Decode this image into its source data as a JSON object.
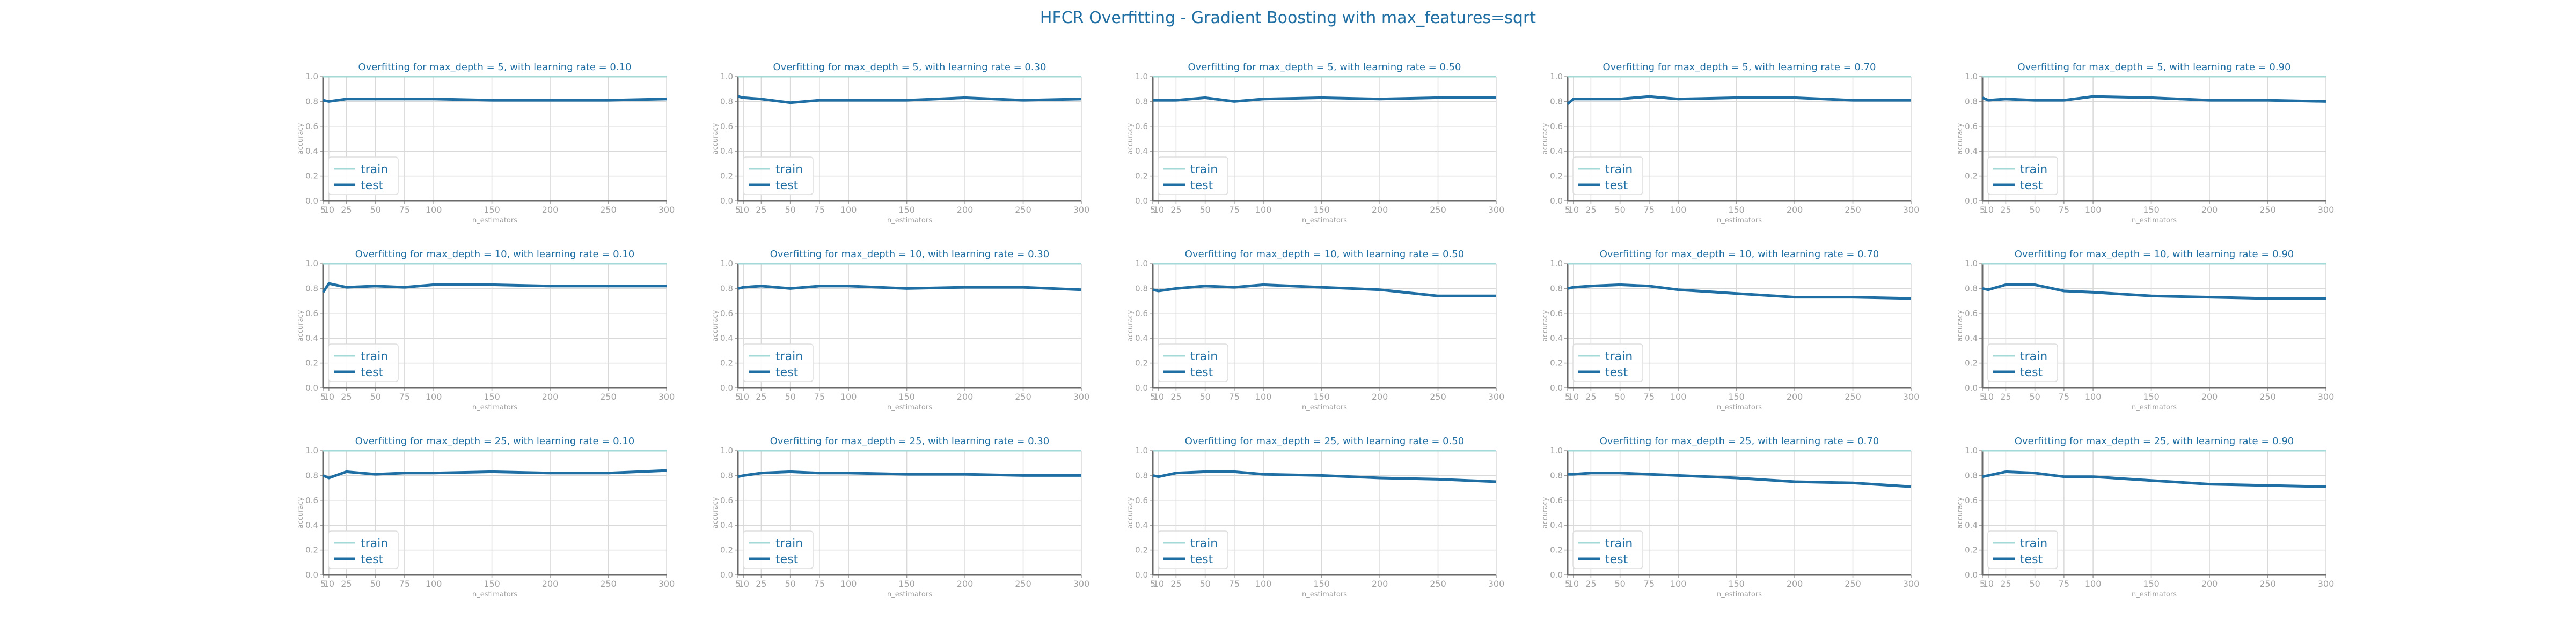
{
  "figure": {
    "suptitle": "HFCR Overfitting - Gradient Boosting with max_features=sqrt",
    "colors": {
      "train": "#a3d9d6",
      "test": "#1f6fa4",
      "title": "#1f6fa4",
      "axis": "#a0a0a0",
      "grid": "#d9d9d9",
      "frame": "#6a6a6a"
    }
  },
  "chart_data": [
    {
      "type": "line",
      "title": "Overfitting for max_depth = 5, with learning rate = 0.10",
      "xlabel": "n_estimators",
      "ylabel": "accuracy",
      "x": [
        5,
        10,
        25,
        50,
        75,
        100,
        150,
        200,
        250,
        300
      ],
      "xticks": [
        "5",
        "10",
        "25",
        "50",
        "75",
        "100",
        "150",
        "200",
        "250",
        "300"
      ],
      "ylim": [
        0,
        1
      ],
      "yticks": [
        "0.0",
        "0.2",
        "0.4",
        "0.6",
        "0.8",
        "1.0"
      ],
      "grid": true,
      "legend": "lower-left",
      "series": [
        {
          "name": "train",
          "values": [
            1,
            1,
            1,
            1,
            1,
            1,
            1,
            1,
            1,
            1
          ]
        },
        {
          "name": "test",
          "values": [
            0.81,
            0.8,
            0.82,
            0.82,
            0.82,
            0.82,
            0.81,
            0.81,
            0.81,
            0.82
          ]
        }
      ]
    },
    {
      "type": "line",
      "title": "Overfitting for max_depth = 5, with learning rate = 0.30",
      "xlabel": "n_estimators",
      "ylabel": "accuracy",
      "x": [
        5,
        10,
        25,
        50,
        75,
        100,
        150,
        200,
        250,
        300
      ],
      "xticks": [
        "5",
        "10",
        "25",
        "50",
        "75",
        "100",
        "150",
        "200",
        "250",
        "300"
      ],
      "ylim": [
        0,
        1
      ],
      "yticks": [
        "0.0",
        "0.2",
        "0.4",
        "0.6",
        "0.8",
        "1.0"
      ],
      "grid": true,
      "legend": "lower-left",
      "series": [
        {
          "name": "train",
          "values": [
            1,
            1,
            1,
            1,
            1,
            1,
            1,
            1,
            1,
            1
          ]
        },
        {
          "name": "test",
          "values": [
            0.84,
            0.83,
            0.82,
            0.79,
            0.81,
            0.81,
            0.81,
            0.83,
            0.81,
            0.82
          ]
        }
      ]
    },
    {
      "type": "line",
      "title": "Overfitting for max_depth = 5, with learning rate = 0.50",
      "xlabel": "n_estimators",
      "ylabel": "accuracy",
      "x": [
        5,
        10,
        25,
        50,
        75,
        100,
        150,
        200,
        250,
        300
      ],
      "xticks": [
        "5",
        "10",
        "25",
        "50",
        "75",
        "100",
        "150",
        "200",
        "250",
        "300"
      ],
      "ylim": [
        0,
        1
      ],
      "yticks": [
        "0.0",
        "0.2",
        "0.4",
        "0.6",
        "0.8",
        "1.0"
      ],
      "grid": true,
      "legend": "lower-left",
      "series": [
        {
          "name": "train",
          "values": [
            1,
            1,
            1,
            1,
            1,
            1,
            1,
            1,
            1,
            1
          ]
        },
        {
          "name": "test",
          "values": [
            0.81,
            0.81,
            0.81,
            0.83,
            0.8,
            0.82,
            0.83,
            0.82,
            0.83,
            0.83
          ]
        }
      ]
    },
    {
      "type": "line",
      "title": "Overfitting for max_depth = 5, with learning rate = 0.70",
      "xlabel": "n_estimators",
      "ylabel": "accuracy",
      "x": [
        5,
        10,
        25,
        50,
        75,
        100,
        150,
        200,
        250,
        300
      ],
      "xticks": [
        "5",
        "10",
        "25",
        "50",
        "75",
        "100",
        "150",
        "200",
        "250",
        "300"
      ],
      "ylim": [
        0,
        1
      ],
      "yticks": [
        "0.0",
        "0.2",
        "0.4",
        "0.6",
        "0.8",
        "1.0"
      ],
      "grid": true,
      "legend": "lower-left",
      "series": [
        {
          "name": "train",
          "values": [
            1,
            1,
            1,
            1,
            1,
            1,
            1,
            1,
            1,
            1
          ]
        },
        {
          "name": "test",
          "values": [
            0.78,
            0.82,
            0.82,
            0.82,
            0.84,
            0.82,
            0.83,
            0.83,
            0.81,
            0.81
          ]
        }
      ]
    },
    {
      "type": "line",
      "title": "Overfitting for max_depth = 5, with learning rate = 0.90",
      "xlabel": "n_estimators",
      "ylabel": "accuracy",
      "x": [
        5,
        10,
        25,
        50,
        75,
        100,
        150,
        200,
        250,
        300
      ],
      "xticks": [
        "5",
        "10",
        "25",
        "50",
        "75",
        "100",
        "150",
        "200",
        "250",
        "300"
      ],
      "ylim": [
        0,
        1
      ],
      "yticks": [
        "0.0",
        "0.2",
        "0.4",
        "0.6",
        "0.8",
        "1.0"
      ],
      "grid": true,
      "legend": "lower-left",
      "series": [
        {
          "name": "train",
          "values": [
            1,
            1,
            1,
            1,
            1,
            1,
            1,
            1,
            1,
            1
          ]
        },
        {
          "name": "test",
          "values": [
            0.83,
            0.81,
            0.82,
            0.81,
            0.81,
            0.84,
            0.83,
            0.81,
            0.81,
            0.8
          ]
        }
      ]
    },
    {
      "type": "line",
      "title": "Overfitting for max_depth = 10, with learning rate = 0.10",
      "xlabel": "n_estimators",
      "ylabel": "accuracy",
      "x": [
        5,
        10,
        25,
        50,
        75,
        100,
        150,
        200,
        250,
        300
      ],
      "xticks": [
        "5",
        "10",
        "25",
        "50",
        "75",
        "100",
        "150",
        "200",
        "250",
        "300"
      ],
      "ylim": [
        0,
        1
      ],
      "yticks": [
        "0.0",
        "0.2",
        "0.4",
        "0.6",
        "0.8",
        "1.0"
      ],
      "grid": true,
      "legend": "lower-left",
      "series": [
        {
          "name": "train",
          "values": [
            1,
            1,
            1,
            1,
            1,
            1,
            1,
            1,
            1,
            1
          ]
        },
        {
          "name": "test",
          "values": [
            0.77,
            0.84,
            0.81,
            0.82,
            0.81,
            0.83,
            0.83,
            0.82,
            0.82,
            0.82
          ]
        }
      ]
    },
    {
      "type": "line",
      "title": "Overfitting for max_depth = 10, with learning rate = 0.30",
      "xlabel": "n_estimators",
      "ylabel": "accuracy",
      "x": [
        5,
        10,
        25,
        50,
        75,
        100,
        150,
        200,
        250,
        300
      ],
      "xticks": [
        "5",
        "10",
        "25",
        "50",
        "75",
        "100",
        "150",
        "200",
        "250",
        "300"
      ],
      "ylim": [
        0,
        1
      ],
      "yticks": [
        "0.0",
        "0.2",
        "0.4",
        "0.6",
        "0.8",
        "1.0"
      ],
      "grid": true,
      "legend": "lower-left",
      "series": [
        {
          "name": "train",
          "values": [
            1,
            1,
            1,
            1,
            1,
            1,
            1,
            1,
            1,
            1
          ]
        },
        {
          "name": "test",
          "values": [
            0.8,
            0.81,
            0.82,
            0.8,
            0.82,
            0.82,
            0.8,
            0.81,
            0.81,
            0.79
          ]
        }
      ]
    },
    {
      "type": "line",
      "title": "Overfitting for max_depth = 10, with learning rate = 0.50",
      "xlabel": "n_estimators",
      "ylabel": "accuracy",
      "x": [
        5,
        10,
        25,
        50,
        75,
        100,
        150,
        200,
        250,
        300
      ],
      "xticks": [
        "5",
        "10",
        "25",
        "50",
        "75",
        "100",
        "150",
        "200",
        "250",
        "300"
      ],
      "ylim": [
        0,
        1
      ],
      "yticks": [
        "0.0",
        "0.2",
        "0.4",
        "0.6",
        "0.8",
        "1.0"
      ],
      "grid": true,
      "legend": "lower-left",
      "series": [
        {
          "name": "train",
          "values": [
            1,
            1,
            1,
            1,
            1,
            1,
            1,
            1,
            1,
            1
          ]
        },
        {
          "name": "test",
          "values": [
            0.79,
            0.78,
            0.8,
            0.82,
            0.81,
            0.83,
            0.81,
            0.79,
            0.74,
            0.74
          ]
        }
      ]
    },
    {
      "type": "line",
      "title": "Overfitting for max_depth = 10, with learning rate = 0.70",
      "xlabel": "n_estimators",
      "ylabel": "accuracy",
      "x": [
        5,
        10,
        25,
        50,
        75,
        100,
        150,
        200,
        250,
        300
      ],
      "xticks": [
        "5",
        "10",
        "25",
        "50",
        "75",
        "100",
        "150",
        "200",
        "250",
        "300"
      ],
      "ylim": [
        0,
        1
      ],
      "yticks": [
        "0.0",
        "0.2",
        "0.4",
        "0.6",
        "0.8",
        "1.0"
      ],
      "grid": true,
      "legend": "lower-left",
      "series": [
        {
          "name": "train",
          "values": [
            1,
            1,
            1,
            1,
            1,
            1,
            1,
            1,
            1,
            1
          ]
        },
        {
          "name": "test",
          "values": [
            0.8,
            0.81,
            0.82,
            0.83,
            0.82,
            0.79,
            0.76,
            0.73,
            0.73,
            0.72
          ]
        }
      ]
    },
    {
      "type": "line",
      "title": "Overfitting for max_depth = 10, with learning rate = 0.90",
      "xlabel": "n_estimators",
      "ylabel": "accuracy",
      "x": [
        5,
        10,
        25,
        50,
        75,
        100,
        150,
        200,
        250,
        300
      ],
      "xticks": [
        "5",
        "10",
        "25",
        "50",
        "75",
        "100",
        "150",
        "200",
        "250",
        "300"
      ],
      "ylim": [
        0,
        1
      ],
      "yticks": [
        "0.0",
        "0.2",
        "0.4",
        "0.6",
        "0.8",
        "1.0"
      ],
      "grid": true,
      "legend": "lower-left",
      "series": [
        {
          "name": "train",
          "values": [
            1,
            1,
            1,
            1,
            1,
            1,
            1,
            1,
            1,
            1
          ]
        },
        {
          "name": "test",
          "values": [
            0.8,
            0.79,
            0.83,
            0.83,
            0.78,
            0.77,
            0.74,
            0.73,
            0.72,
            0.72
          ]
        }
      ]
    },
    {
      "type": "line",
      "title": "Overfitting for max_depth = 25, with learning rate = 0.10",
      "xlabel": "n_estimators",
      "ylabel": "accuracy",
      "x": [
        5,
        10,
        25,
        50,
        75,
        100,
        150,
        200,
        250,
        300
      ],
      "xticks": [
        "5",
        "10",
        "25",
        "50",
        "75",
        "100",
        "150",
        "200",
        "250",
        "300"
      ],
      "ylim": [
        0,
        1
      ],
      "yticks": [
        "0.0",
        "0.2",
        "0.4",
        "0.6",
        "0.8",
        "1.0"
      ],
      "grid": true,
      "legend": "lower-left",
      "series": [
        {
          "name": "train",
          "values": [
            1,
            1,
            1,
            1,
            1,
            1,
            1,
            1,
            1,
            1
          ]
        },
        {
          "name": "test",
          "values": [
            0.8,
            0.78,
            0.83,
            0.81,
            0.82,
            0.82,
            0.83,
            0.82,
            0.82,
            0.84
          ]
        }
      ]
    },
    {
      "type": "line",
      "title": "Overfitting for max_depth = 25, with learning rate = 0.30",
      "xlabel": "n_estimators",
      "ylabel": "accuracy",
      "x": [
        5,
        10,
        25,
        50,
        75,
        100,
        150,
        200,
        250,
        300
      ],
      "xticks": [
        "5",
        "10",
        "25",
        "50",
        "75",
        "100",
        "150",
        "200",
        "250",
        "300"
      ],
      "ylim": [
        0,
        1
      ],
      "yticks": [
        "0.0",
        "0.2",
        "0.4",
        "0.6",
        "0.8",
        "1.0"
      ],
      "grid": true,
      "legend": "lower-left",
      "series": [
        {
          "name": "train",
          "values": [
            1,
            1,
            1,
            1,
            1,
            1,
            1,
            1,
            1,
            1
          ]
        },
        {
          "name": "test",
          "values": [
            0.79,
            0.8,
            0.82,
            0.83,
            0.82,
            0.82,
            0.81,
            0.81,
            0.8,
            0.8
          ]
        }
      ]
    },
    {
      "type": "line",
      "title": "Overfitting for max_depth = 25, with learning rate = 0.50",
      "xlabel": "n_estimators",
      "ylabel": "accuracy",
      "x": [
        5,
        10,
        25,
        50,
        75,
        100,
        150,
        200,
        250,
        300
      ],
      "xticks": [
        "5",
        "10",
        "25",
        "50",
        "75",
        "100",
        "150",
        "200",
        "250",
        "300"
      ],
      "ylim": [
        0,
        1
      ],
      "yticks": [
        "0.0",
        "0.2",
        "0.4",
        "0.6",
        "0.8",
        "1.0"
      ],
      "grid": true,
      "legend": "lower-left",
      "series": [
        {
          "name": "train",
          "values": [
            1,
            1,
            1,
            1,
            1,
            1,
            1,
            1,
            1,
            1
          ]
        },
        {
          "name": "test",
          "values": [
            0.8,
            0.79,
            0.82,
            0.83,
            0.83,
            0.81,
            0.8,
            0.78,
            0.77,
            0.75
          ]
        }
      ]
    },
    {
      "type": "line",
      "title": "Overfitting for max_depth = 25, with learning rate = 0.70",
      "xlabel": "n_estimators",
      "ylabel": "accuracy",
      "x": [
        5,
        10,
        25,
        50,
        75,
        100,
        150,
        200,
        250,
        300
      ],
      "xticks": [
        "5",
        "10",
        "25",
        "50",
        "75",
        "100",
        "150",
        "200",
        "250",
        "300"
      ],
      "ylim": [
        0,
        1
      ],
      "yticks": [
        "0.0",
        "0.2",
        "0.4",
        "0.6",
        "0.8",
        "1.0"
      ],
      "grid": true,
      "legend": "lower-left",
      "series": [
        {
          "name": "train",
          "values": [
            1,
            1,
            1,
            1,
            1,
            1,
            1,
            1,
            1,
            1
          ]
        },
        {
          "name": "test",
          "values": [
            0.81,
            0.81,
            0.82,
            0.82,
            0.81,
            0.8,
            0.78,
            0.75,
            0.74,
            0.71
          ]
        }
      ]
    },
    {
      "type": "line",
      "title": "Overfitting for max_depth = 25, with learning rate = 0.90",
      "xlabel": "n_estimators",
      "ylabel": "accuracy",
      "x": [
        5,
        10,
        25,
        50,
        75,
        100,
        150,
        200,
        250,
        300
      ],
      "xticks": [
        "5",
        "10",
        "25",
        "50",
        "75",
        "100",
        "150",
        "200",
        "250",
        "300"
      ],
      "ylim": [
        0,
        1
      ],
      "yticks": [
        "0.0",
        "0.2",
        "0.4",
        "0.6",
        "0.8",
        "1.0"
      ],
      "grid": true,
      "legend": "lower-left",
      "series": [
        {
          "name": "train",
          "values": [
            1,
            1,
            1,
            1,
            1,
            1,
            1,
            1,
            1,
            1
          ]
        },
        {
          "name": "test",
          "values": [
            0.79,
            0.8,
            0.83,
            0.82,
            0.79,
            0.79,
            0.76,
            0.73,
            0.72,
            0.71
          ]
        }
      ]
    }
  ]
}
